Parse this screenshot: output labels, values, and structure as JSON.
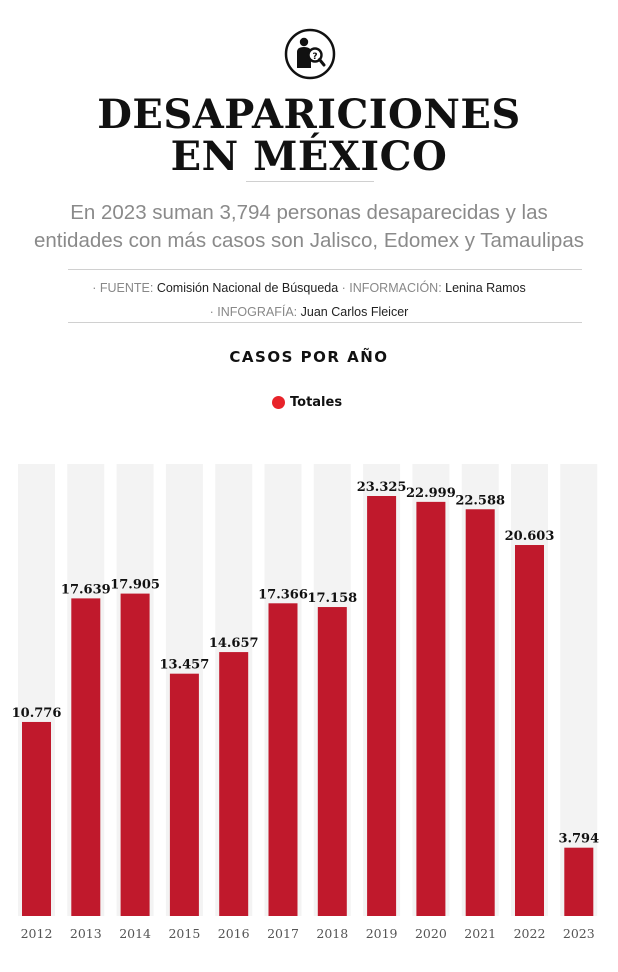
{
  "header": {
    "icon": "missing-person-search-icon",
    "title_line1": "DESAPARICIONES",
    "title_line2": "EN MÉXICO",
    "subtitle_line1": "En 2023 suman 3,794 personas desaparecidas y las",
    "subtitle_line2": "entidades con más casos son Jalisco, Edomex y Tamaulipas"
  },
  "credits": {
    "fuente_label": "· FUENTE:",
    "fuente": "Comisión Nacional de Búsqueda",
    "info_label": "· INFORMACIÓN:",
    "info": "Lenina Ramos",
    "infografia_label": "· INFOGRAFÍA:",
    "infografia": "Juan Carlos Fleicer"
  },
  "colors": {
    "bar": "#c0192c",
    "legend_dot": "#e8232a",
    "column_bg": "#f3f3f3"
  },
  "chart_data": {
    "type": "bar",
    "title": "CASOS POR AÑO",
    "legend": [
      {
        "name": "Totales",
        "position": "top-center"
      }
    ],
    "categories": [
      "2012",
      "2013",
      "2014",
      "2015",
      "2016",
      "2017",
      "2018",
      "2019",
      "2020",
      "2021",
      "2022",
      "2023"
    ],
    "series": [
      {
        "name": "Totales",
        "values": [
          10776,
          17639,
          17905,
          13457,
          14657,
          17366,
          17158,
          23325,
          22999,
          22588,
          20603,
          3794
        ],
        "labels": [
          "10.776",
          "17.639",
          "17.905",
          "13.457",
          "14.657",
          "17.366",
          "17.158",
          "23.325",
          "22.999",
          "22.588",
          "20.603",
          "3.794"
        ]
      }
    ],
    "ylim": [
      0,
      23325
    ],
    "grid": false
  }
}
